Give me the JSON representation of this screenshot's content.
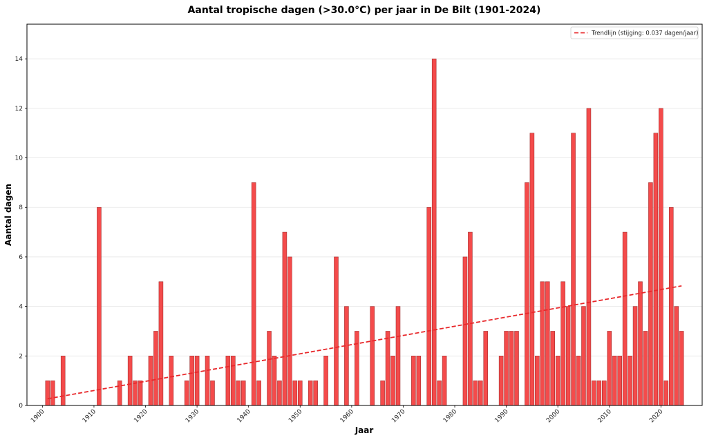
{
  "chart_data": {
    "type": "bar",
    "title": "Aantal tropische dagen (>30.0°C) per jaar in De Bilt (1901-2024)",
    "xlabel": "Jaar",
    "ylabel": "Aantal dagen",
    "xlim": [
      1897,
      2028
    ],
    "ylim": [
      0,
      15.4
    ],
    "xticks": [
      1900,
      1910,
      1920,
      1930,
      1940,
      1950,
      1960,
      1970,
      1980,
      1990,
      2000,
      2010,
      2020
    ],
    "yticks": [
      0,
      2,
      4,
      6,
      8,
      10,
      12,
      14
    ],
    "grid": "horizontal",
    "bar_color": "#f44b4b",
    "bar_edge_color": "#a23030",
    "trend_color": "#e8282b",
    "legend_position": "top-right",
    "legend_label": "Trendlijn (stijging: 0.037 dagen/jaar)",
    "x": [
      1901,
      1902,
      1904,
      1911,
      1915,
      1917,
      1918,
      1919,
      1921,
      1922,
      1923,
      1925,
      1928,
      1929,
      1930,
      1932,
      1933,
      1936,
      1937,
      1938,
      1939,
      1941,
      1942,
      1944,
      1945,
      1946,
      1947,
      1948,
      1949,
      1950,
      1952,
      1953,
      1955,
      1957,
      1959,
      1961,
      1964,
      1966,
      1967,
      1968,
      1969,
      1972,
      1973,
      1975,
      1976,
      1977,
      1978,
      1982,
      1983,
      1984,
      1985,
      1986,
      1989,
      1990,
      1991,
      1992,
      1994,
      1995,
      1996,
      1997,
      1998,
      1999,
      2000,
      2001,
      2002,
      2003,
      2004,
      2005,
      2006,
      2007,
      2008,
      2009,
      2010,
      2011,
      2012,
      2013,
      2014,
      2015,
      2016,
      2017,
      2018,
      2019,
      2020,
      2021,
      2022,
      2023,
      2024
    ],
    "values": [
      1,
      1,
      2,
      8,
      1,
      2,
      1,
      1,
      2,
      3,
      5,
      2,
      1,
      2,
      2,
      2,
      1,
      2,
      2,
      1,
      1,
      9,
      1,
      3,
      2,
      1,
      7,
      6,
      1,
      1,
      1,
      1,
      2,
      6,
      4,
      3,
      4,
      1,
      3,
      2,
      4,
      2,
      2,
      8,
      14,
      1,
      2,
      6,
      7,
      1,
      1,
      3,
      2,
      3,
      3,
      3,
      9,
      11,
      2,
      5,
      5,
      3,
      2,
      5,
      4,
      11,
      2,
      4,
      12,
      1,
      1,
      1,
      3,
      2,
      2,
      7,
      2,
      4,
      5,
      3,
      9,
      11,
      12,
      1,
      8,
      4,
      3
    ],
    "trend": {
      "x": [
        1901,
        2024
      ],
      "y": [
        0.27,
        4.83
      ]
    }
  }
}
